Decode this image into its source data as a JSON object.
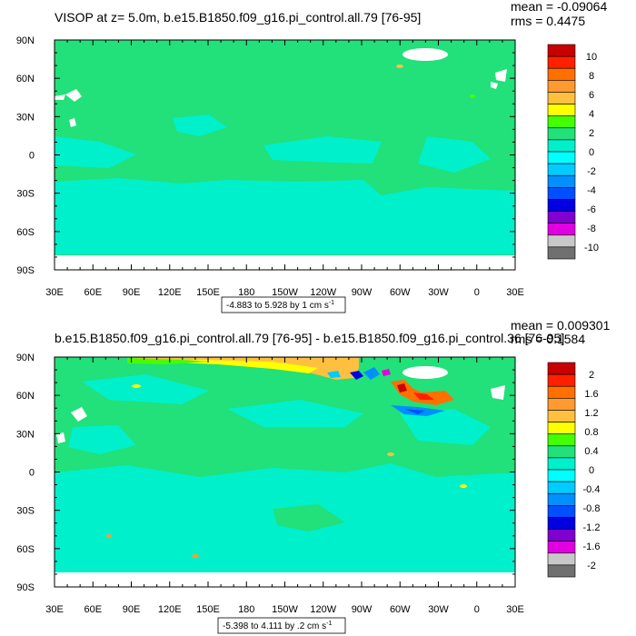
{
  "colors": {
    "ocean_base": "#22e07a",
    "ocean_low": "#00f0cc",
    "cyan": "#00ffff",
    "land_mask": "#ffffff",
    "ice_strip": "#ffffff"
  },
  "chart_data": [
    {
      "type": "heatmap",
      "title": "VISOP at z=   5.0m, b.e15.B1850.f09_g16.pi_control.all.79 [76-95]",
      "stats": {
        "mean": "mean = -0.09064",
        "rms": "rms = 0.4475"
      },
      "range_label": "-4.883 to 5.928 by 1 cm s",
      "range_sup": "-1",
      "xticks": [
        "30E",
        "60E",
        "90E",
        "120E",
        "150E",
        "180",
        "150W",
        "120W",
        "90W",
        "60W",
        "30W",
        "0",
        "30E"
      ],
      "yticks": [
        "90N",
        "60N",
        "30N",
        "0",
        "30S",
        "60S",
        "90S"
      ],
      "colorbar": {
        "labels": [
          "10",
          "8",
          "6",
          "4",
          "2",
          "0",
          "-2",
          "-4",
          "-6",
          "-8",
          "-10"
        ],
        "colors": [
          "#c80000",
          "#ff2000",
          "#ff7000",
          "#ff9a30",
          "#ffc040",
          "#ffff00",
          "#44ff00",
          "#22e07a",
          "#00f0cc",
          "#00ffff",
          "#00ccff",
          "#0090ff",
          "#0050ff",
          "#0000e0",
          "#8000d0",
          "#e000e0",
          "#c8c8c8",
          "#707070"
        ]
      }
    },
    {
      "type": "heatmap",
      "title": "b.e15.B1850.f09_g16.pi_control.all.79 [76-95] - b.e15.B1850.f09_g16.pi_control.36 [76-95]",
      "stats": {
        "mean": "mean = 0.009301",
        "rms": "rms = 0.1584"
      },
      "range_label": "-5.398 to 4.111 by .2 cm s",
      "range_sup": "-1",
      "xticks": [
        "30E",
        "60E",
        "90E",
        "120E",
        "150E",
        "180",
        "150W",
        "120W",
        "90W",
        "60W",
        "30W",
        "0",
        "30E"
      ],
      "yticks": [
        "90N",
        "60N",
        "30N",
        "0",
        "30S",
        "60S",
        "90S"
      ],
      "colorbar": {
        "labels": [
          "2",
          "1.6",
          "1.2",
          "0.8",
          "0.4",
          "0",
          "-0.4",
          "-0.8",
          "-1.2",
          "-1.6",
          "-2"
        ],
        "colors": [
          "#c80000",
          "#ff2000",
          "#ff7000",
          "#ff9a30",
          "#ffc040",
          "#ffff00",
          "#44ff00",
          "#22e07a",
          "#00f0cc",
          "#00ffff",
          "#00ccff",
          "#0090ff",
          "#0050ff",
          "#0000e0",
          "#8000d0",
          "#e000e0",
          "#c8c8c8",
          "#707070"
        ]
      }
    }
  ]
}
